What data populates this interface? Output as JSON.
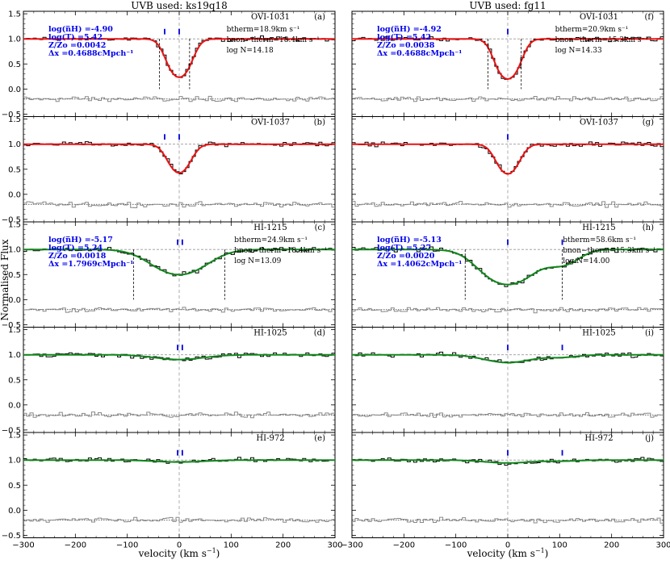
{
  "figure": {
    "ylabel": "Normalised Flux",
    "xlabel": "velocity (km s$^{-1}$)",
    "xlabel_text": "velocity (km s",
    "xlabel_sup": "−1",
    "xlabel_close": ")",
    "x_ticks": [
      "−300",
      "−200",
      "−100",
      "0",
      "100",
      "200",
      "300"
    ],
    "y_ticks": [
      "1.5",
      "1.0",
      "0.5",
      "0.0",
      "−0.5"
    ]
  },
  "colors": {
    "ovi_fit": "#ee1111",
    "hi_fit": "#11881b",
    "data": "#000000",
    "residual": "#888888",
    "marker": "#0000dd",
    "params": "#0000ee"
  },
  "columns": [
    {
      "title": "UVB used: ks19q18",
      "panels": [
        {
          "ion": "OVI-1031",
          "letter": "(a)",
          "type": "ovi",
          "tau": 1.45,
          "v0": 0,
          "b": 26,
          "components": [
            {
              "v": 0,
              "tau": 1.45,
              "b": 26
            }
          ],
          "markers": [
            -28,
            0
          ],
          "dashed_lines": [
            -38,
            20
          ],
          "params": [
            "log(n̅H) =-4.90",
            "log(T) =5.42",
            "Z/Zo =0.0042",
            "Δx =0.4688cMpch⁻¹"
          ],
          "bparams": [
            "btherm=18.9km s⁻¹",
            "bnon−therm=18.4km s⁻¹",
            "log N=14.18"
          ]
        },
        {
          "ion": "OVI-1037",
          "letter": "(b)",
          "type": "ovi",
          "components": [
            {
              "v": 0,
              "tau": 0.85,
              "b": 26
            }
          ],
          "markers": [
            -28,
            0
          ],
          "dashed_lines": [],
          "params": [],
          "bparams": []
        },
        {
          "ion": "HI-1215",
          "letter": "(c)",
          "type": "hi",
          "components": [
            {
              "v": 0,
              "tau": 0.7,
              "b": 65
            }
          ],
          "markers": [
            -3,
            6
          ],
          "dashed_lines": [
            -88,
            88
          ],
          "params": [
            "log(n̅H) =-5.17",
            "log(T) =5.24",
            "Z/Zo =0.0018",
            "Δx =1.7969cMpch⁻¹"
          ],
          "bparams": [
            "btherm=24.9km s⁻¹",
            "bnon−therm=18.4km s⁻¹",
            "log N=13.09"
          ]
        },
        {
          "ion": "HI-1025",
          "letter": "(d)",
          "type": "hi",
          "components": [
            {
              "v": 0,
              "tau": 0.1,
              "b": 65
            }
          ],
          "markers": [
            -3,
            6
          ],
          "dashed_lines": [],
          "params": [],
          "bparams": []
        },
        {
          "ion": "HI-972",
          "letter": "(e)",
          "type": "hi",
          "components": [
            {
              "v": 0,
              "tau": 0.04,
              "b": 65
            }
          ],
          "markers": [
            -3,
            6
          ],
          "dashed_lines": [],
          "params": [],
          "bparams": []
        }
      ]
    },
    {
      "title": "UVB used: fg11",
      "panels": [
        {
          "ion": "OVI-1031",
          "letter": "(f)",
          "type": "ovi",
          "components": [
            {
              "v": 0,
              "tau": 1.6,
              "b": 26
            }
          ],
          "markers": [
            0
          ],
          "dashed_lines": [
            -38,
            26
          ],
          "params": [
            "log(n̅H) =-4.92",
            "log(T) =5.42",
            "Z/Zo =0.0038",
            "Δx =0.4688cMpch⁻¹"
          ],
          "bparams": [
            "btherm=20.9km s⁻¹",
            "bnon−therm=15.3km s⁻¹",
            "log N=14.33"
          ]
        },
        {
          "ion": "OVI-1037",
          "letter": "(g)",
          "type": "ovi",
          "components": [
            {
              "v": 0,
              "tau": 0.9,
              "b": 26
            }
          ],
          "markers": [
            0
          ],
          "dashed_lines": [],
          "params": [],
          "bparams": []
        },
        {
          "ion": "HI-1215",
          "letter": "(h)",
          "type": "hi",
          "components": [
            {
              "v": 0,
              "tau": 1.2,
              "b": 60
            },
            {
              "v": 105,
              "tau": 0.35,
              "b": 42
            }
          ],
          "markers": [
            0,
            105
          ],
          "dashed_lines": [
            -82,
            105
          ],
          "params": [
            "log(n̅H) =-5.13",
            "log(T) =5.27",
            "Z/Zo =0.0020",
            "Δx =1.4062cMpch⁻¹"
          ],
          "bparams": [
            "btherm=58.6km s⁻¹",
            "bnon−therm=15.3km s⁻¹",
            "log N=14.00"
          ]
        },
        {
          "ion": "HI-1025",
          "letter": "(i)",
          "type": "hi",
          "components": [
            {
              "v": 0,
              "tau": 0.17,
              "b": 60
            },
            {
              "v": 105,
              "tau": 0.05,
              "b": 42
            }
          ],
          "markers": [
            0,
            105
          ],
          "dashed_lines": [],
          "params": [],
          "bparams": []
        },
        {
          "ion": "HI-972",
          "letter": "(j)",
          "type": "hi",
          "components": [
            {
              "v": 0,
              "tau": 0.06,
              "b": 60
            },
            {
              "v": 105,
              "tau": 0.02,
              "b": 42
            }
          ],
          "markers": [
            0,
            105
          ],
          "dashed_lines": [],
          "params": [],
          "bparams": []
        }
      ]
    }
  ],
  "chart_data": {
    "type": "line",
    "title": "",
    "xlabel": "velocity (km s$^{-1}$)",
    "ylabel": "Normalised Flux",
    "xlim": [
      -300,
      300
    ],
    "ylim": [
      -0.55,
      1.55
    ],
    "grid": false,
    "series_note": "10 panels of absorption spectra: data (black step), fits (red for OVI, green for HI), residuals (grey step)"
  }
}
